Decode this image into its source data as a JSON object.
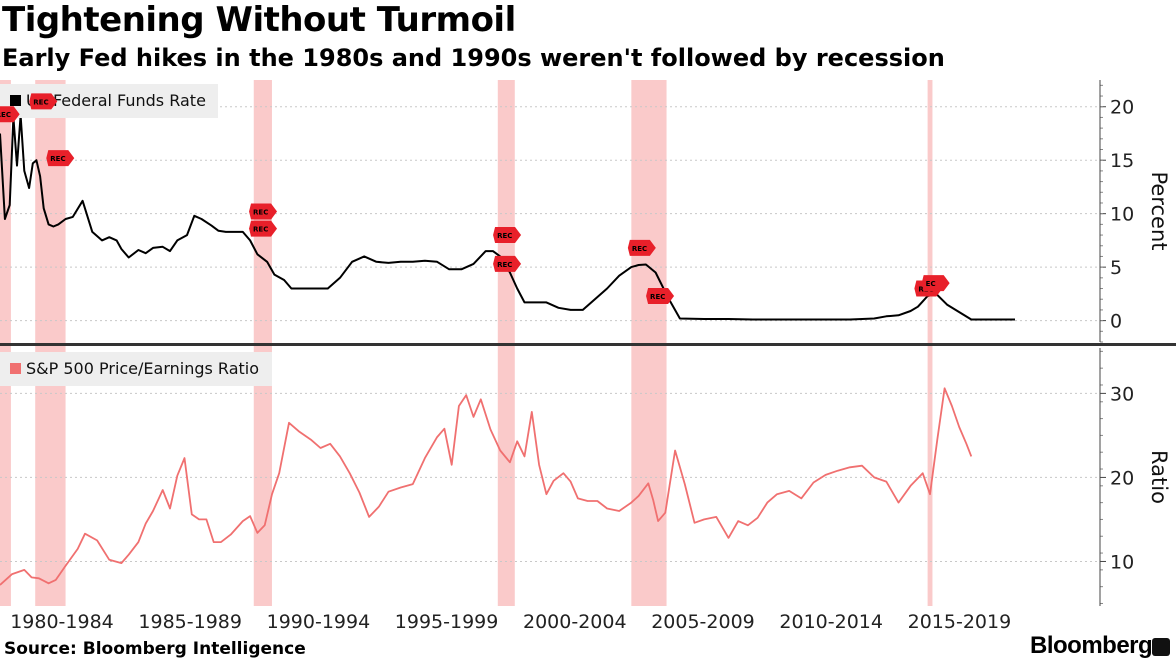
{
  "header": {
    "title": "Tightening Without Turmoil",
    "subtitle": "Early Fed hikes in the 1980s and 1990s weren't followed by recession"
  },
  "footer": {
    "source": "Source: Bloomberg Intelligence",
    "brand": "Bloomberg"
  },
  "colors": {
    "fed_line": "#000000",
    "pe_line": "#f07070",
    "recession_band": "#f9c4c4",
    "rec_marker": "#e8202a",
    "divider": "#333333"
  },
  "chart_data": [
    {
      "type": "line",
      "name": "fed-funds",
      "legend": "US Federal Funds Rate",
      "ylabel": "Percent",
      "ylim": [
        -2,
        22.5
      ],
      "yticks": [
        0,
        5,
        10,
        15,
        20
      ],
      "xlim": [
        1978.0,
        2023.3
      ],
      "recessions": [
        [
          1978.0,
          1978.45
        ],
        [
          1979.45,
          1980.7
        ],
        [
          1988.45,
          1989.2
        ],
        [
          1998.5,
          1999.2
        ],
        [
          2004.0,
          2005.45
        ],
        [
          2016.2,
          2016.4
        ]
      ],
      "rec_markers": [
        {
          "x": 1978.15,
          "y": 19.3,
          "label": "REC"
        },
        {
          "x": 1979.7,
          "y": 20.5,
          "label": "REC"
        },
        {
          "x": 1980.4,
          "y": 15.2,
          "label": "REC"
        },
        {
          "x": 1988.75,
          "y": 10.2,
          "label": "REC"
        },
        {
          "x": 1988.75,
          "y": 8.6,
          "label": "REC"
        },
        {
          "x": 1998.8,
          "y": 8.0,
          "label": "REC"
        },
        {
          "x": 1998.8,
          "y": 5.3,
          "label": "REC"
        },
        {
          "x": 2004.35,
          "y": 6.8,
          "label": "REC"
        },
        {
          "x": 2005.1,
          "y": 2.3,
          "label": "REC"
        },
        {
          "x": 2016.15,
          "y": 3.0,
          "label": "REC"
        },
        {
          "x": 2016.45,
          "y": 3.5,
          "label": "EC"
        }
      ],
      "x": [
        1978.0,
        1978.2,
        1978.4,
        1978.55,
        1978.7,
        1978.85,
        1979.0,
        1979.2,
        1979.35,
        1979.5,
        1979.65,
        1979.8,
        1980.0,
        1980.2,
        1980.4,
        1980.7,
        1981.0,
        1981.4,
        1981.8,
        1982.2,
        1982.5,
        1982.8,
        1983.0,
        1983.3,
        1983.7,
        1984.0,
        1984.3,
        1984.7,
        1985.0,
        1985.3,
        1985.7,
        1986.0,
        1986.3,
        1986.7,
        1987.0,
        1987.3,
        1987.7,
        1988.0,
        1988.3,
        1988.6,
        1989.0,
        1989.3,
        1989.7,
        1990.0,
        1990.5,
        1991.0,
        1991.5,
        1992.0,
        1992.5,
        1993.0,
        1993.5,
        1994.0,
        1994.5,
        1995.0,
        1995.5,
        1996.0,
        1996.5,
        1997.0,
        1997.5,
        1998.0,
        1998.3,
        1998.6,
        1999.0,
        1999.3,
        1999.6,
        2000.0,
        2000.5,
        2001.0,
        2001.5,
        2002.0,
        2002.5,
        2003.0,
        2003.5,
        2004.0,
        2004.3,
        2004.6,
        2005.0,
        2005.5,
        2006.0,
        2007.0,
        2008.0,
        2009.0,
        2010.0,
        2011.0,
        2012.0,
        2013.0,
        2014.0,
        2014.5,
        2015.0,
        2015.5,
        2015.8,
        2016.0,
        2016.2,
        2016.4,
        2016.6,
        2017.0,
        2018.0,
        2019.0,
        2019.8
      ],
      "y": [
        17.5,
        9.5,
        10.8,
        19.0,
        14.5,
        19.2,
        14.0,
        12.4,
        14.7,
        15.0,
        13.5,
        10.5,
        9.0,
        8.8,
        9.0,
        9.5,
        9.7,
        11.2,
        8.3,
        7.5,
        7.8,
        7.5,
        6.7,
        5.9,
        6.6,
        6.3,
        6.8,
        6.9,
        6.5,
        7.5,
        8.0,
        9.8,
        9.5,
        8.9,
        8.4,
        8.3,
        8.3,
        8.3,
        7.5,
        6.2,
        5.5,
        4.3,
        3.8,
        3.0,
        3.0,
        3.0,
        3.0,
        4.0,
        5.5,
        6.0,
        5.5,
        5.4,
        5.5,
        5.5,
        5.6,
        5.5,
        4.8,
        4.8,
        5.3,
        6.5,
        6.5,
        6.0,
        4.5,
        3.0,
        1.7,
        1.7,
        1.7,
        1.2,
        1.0,
        1.0,
        2.0,
        3.0,
        4.2,
        5.0,
        5.2,
        5.25,
        4.5,
        2.2,
        0.2,
        0.15,
        0.15,
        0.1,
        0.1,
        0.1,
        0.1,
        0.1,
        0.2,
        0.4,
        0.5,
        0.9,
        1.3,
        1.8,
        2.3,
        2.4,
        2.4,
        1.5,
        0.1,
        0.1,
        0.1
      ]
    },
    {
      "type": "line",
      "name": "sp500-pe",
      "legend": "S&P 500 Price/Earnings Ratio",
      "ylabel": "Ratio",
      "ylim": [
        4.7,
        35.4
      ],
      "yticks": [
        10,
        20,
        30
      ],
      "xlim": [
        1978.0,
        2023.3
      ],
      "xticks": [
        "1980-1984",
        "1985-1989",
        "1990-1994",
        "1995-1999",
        "2000-2004",
        "2005-2009",
        "2010-2014",
        "2015-2019"
      ],
      "x": [
        1978.0,
        1978.5,
        1979.0,
        1979.3,
        1979.6,
        1980.0,
        1980.3,
        1980.7,
        1981.2,
        1981.5,
        1982.0,
        1982.5,
        1983.0,
        1983.3,
        1983.7,
        1984.0,
        1984.3,
        1984.7,
        1985.0,
        1985.3,
        1985.6,
        1985.9,
        1986.2,
        1986.5,
        1986.8,
        1987.1,
        1987.5,
        1988.0,
        1988.3,
        1988.6,
        1988.9,
        1989.2,
        1989.5,
        1989.9,
        1990.3,
        1990.8,
        1991.2,
        1991.6,
        1992.0,
        1992.4,
        1992.8,
        1993.2,
        1993.6,
        1994.0,
        1994.5,
        1995.0,
        1995.5,
        1996.0,
        1996.3,
        1996.6,
        1996.9,
        1997.2,
        1997.5,
        1997.8,
        1998.2,
        1998.6,
        1999.0,
        1999.3,
        1999.6,
        1999.9,
        2000.2,
        2000.5,
        2000.8,
        2001.2,
        2001.5,
        2001.8,
        2002.2,
        2002.6,
        2003.0,
        2003.5,
        2004.0,
        2004.3,
        2004.7,
        2004.9,
        2005.1,
        2005.4,
        2005.8,
        2006.2,
        2006.6,
        2007.0,
        2007.5,
        2008.0,
        2008.4,
        2008.8,
        2009.2,
        2009.6,
        2010.0,
        2010.5,
        2011.0,
        2011.5,
        2012.0,
        2012.5,
        2013.0,
        2013.5,
        2014.0,
        2014.5,
        2015.0,
        2015.5,
        2016.0,
        2016.3,
        2016.6,
        2016.9,
        2017.2,
        2017.5,
        2017.8,
        2018.0
      ],
      "y": [
        7.2,
        8.5,
        9.0,
        8.1,
        8.0,
        7.4,
        7.8,
        9.5,
        11.5,
        13.3,
        12.5,
        10.2,
        9.8,
        10.8,
        12.3,
        14.5,
        16.0,
        18.5,
        16.3,
        20.2,
        22.3,
        15.6,
        15.0,
        15.0,
        12.3,
        12.3,
        13.2,
        14.8,
        15.4,
        13.4,
        14.3,
        18.0,
        20.5,
        26.5,
        25.5,
        24.5,
        23.5,
        24.0,
        22.5,
        20.5,
        18.2,
        15.3,
        16.5,
        18.3,
        18.8,
        19.2,
        22.3,
        24.8,
        25.8,
        21.5,
        28.5,
        29.8,
        27.2,
        29.3,
        25.7,
        23.2,
        21.8,
        24.3,
        22.5,
        27.8,
        21.5,
        18.0,
        19.6,
        20.5,
        19.5,
        17.5,
        17.2,
        17.2,
        16.3,
        16.0,
        17.0,
        17.8,
        19.3,
        17.3,
        14.8,
        15.8,
        23.2,
        19.2,
        14.6,
        15.0,
        15.3,
        12.8,
        14.8,
        14.3,
        15.2,
        17.0,
        18.0,
        18.4,
        17.5,
        19.4,
        20.3,
        20.8,
        21.2,
        21.4,
        20.0,
        19.5,
        17.0,
        19.0,
        20.5,
        18.0,
        24.5,
        30.6,
        28.5,
        26.0,
        24.0,
        22.5
      ]
    }
  ]
}
